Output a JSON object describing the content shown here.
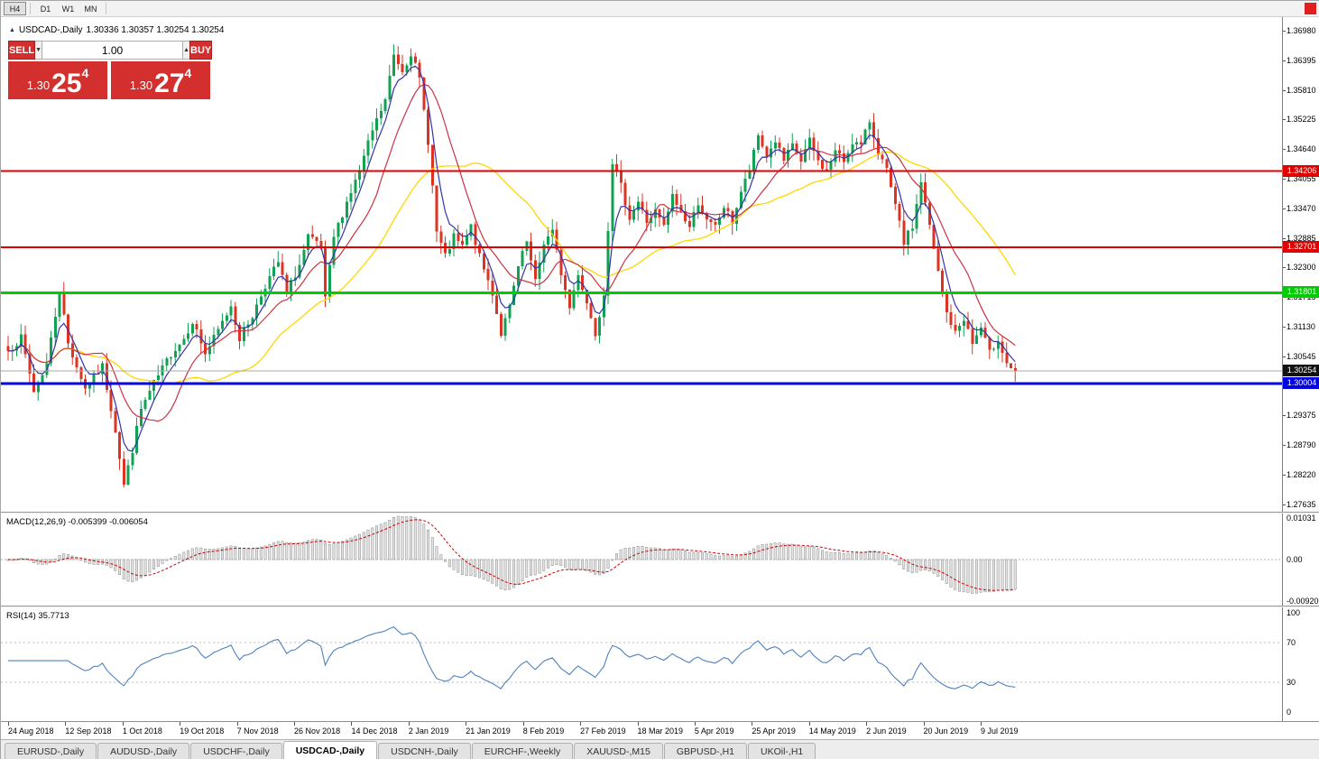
{
  "topbar": {
    "timeframes": [
      "H4",
      "D1",
      "W1",
      "MN"
    ],
    "active_timeframe": "H4"
  },
  "status_indicator_color": "#e02020",
  "chart": {
    "title_symbol": "USDCAD-,Daily",
    "title_ohlc": "1.30336 1.30357 1.30254 1.30254",
    "price_axis": [
      "1.36980",
      "1.36395",
      "1.35810",
      "1.35225",
      "1.34640",
      "1.34055",
      "1.33470",
      "1.32885",
      "1.32300",
      "1.31715",
      "1.31130",
      "1.30545",
      "1.29960",
      "1.29375",
      "1.28790",
      "1.28220",
      "1.27635"
    ],
    "hlines": [
      {
        "price": 1.34206,
        "label": "1.34206",
        "color": "#e00000",
        "width": 2
      },
      {
        "price": 1.32701,
        "label": "1.32701",
        "color": "#e00000",
        "width": 2
      },
      {
        "price": 1.31801,
        "label": "1.31801",
        "color": "#00cc00",
        "width": 3
      },
      {
        "price": 1.30004,
        "label": "1.30004",
        "color": "#0000e0",
        "width": 3
      }
    ],
    "bid_line": {
      "price": 1.30254,
      "label": "1.30254",
      "line_color": "#aaaaaa",
      "tag_color": "#111111"
    },
    "colors": {
      "bull": "#11a152",
      "bear": "#dd3322",
      "ma_fast": "#3333aa",
      "ma_mid": "#cc3344",
      "ma_slow": "#ffd700"
    }
  },
  "trade_panel": {
    "sell_label": "SELL",
    "buy_label": "BUY",
    "volume": "1.00",
    "sell_price": {
      "prefix": "1.30",
      "big": "25",
      "sup": "4"
    },
    "buy_price": {
      "prefix": "1.30",
      "big": "27",
      "sup": "4"
    },
    "panel_color": "#d42f2f"
  },
  "icons": {
    "collapse": "▲",
    "spin_up": "▲",
    "spin_down": "▼"
  },
  "macd": {
    "label": "MACD(12,26,9)",
    "values": "-0.005399 -0.006054",
    "axis": [
      "0.01031",
      "0.00",
      "-0.00920"
    ],
    "hist_fill": "#e4e4e4",
    "hist_stroke": "#999999",
    "signal_color": "#cc0000"
  },
  "rsi": {
    "label": "RSI(14)",
    "value": "35.7713",
    "axis": [
      "100",
      "70",
      "30",
      "0"
    ],
    "levels": [
      70,
      30
    ],
    "line_color": "#4f81bd"
  },
  "tabs": {
    "items": [
      "EURUSD-,Daily",
      "AUDUSD-,Daily",
      "USDCHF-,Daily",
      "USDCAD-,Daily",
      "USDCNH-,Daily",
      "EURCHF-,Weekly",
      "XAUUSD-,M15",
      "GBPUSD-,H1",
      "UKOil-,H1"
    ],
    "active_index": 3
  },
  "chart_data": {
    "type": "candlestick",
    "symbol": "USDCAD",
    "period": "Daily",
    "candle_count": 236,
    "last_close": 1.30254,
    "visible_price_range": [
      1.27635,
      1.3698
    ],
    "date_labels": [
      "24 Aug 2018",
      "12 Sep 2018",
      "1 Oct 2018",
      "19 Oct 2018",
      "7 Nov 2018",
      "26 Nov 2018",
      "14 Dec 2018",
      "2 Jan 2019",
      "21 Jan 2019",
      "8 Feb 2019",
      "27 Feb 2019",
      "18 Mar 2019",
      "5 Apr 2019",
      "25 Apr 2019",
      "14 May 2019",
      "2 Jun 2019",
      "20 Jun 2019",
      "9 Jul 2019"
    ],
    "anchors": [
      [
        0,
        1.3065
      ],
      [
        3,
        1.309
      ],
      [
        6,
        1.2985
      ],
      [
        9,
        1.304
      ],
      [
        12,
        1.3185
      ],
      [
        14,
        1.308
      ],
      [
        18,
        1.299
      ],
      [
        22,
        1.3035
      ],
      [
        25,
        1.291
      ],
      [
        27,
        1.28
      ],
      [
        29,
        1.287
      ],
      [
        31,
        1.295
      ],
      [
        34,
        1.3
      ],
      [
        38,
        1.306
      ],
      [
        41,
        1.309
      ],
      [
        43,
        1.3125
      ],
      [
        46,
        1.306
      ],
      [
        49,
        1.3105
      ],
      [
        52,
        1.3155
      ],
      [
        54,
        1.309
      ],
      [
        57,
        1.3135
      ],
      [
        60,
        1.3195
      ],
      [
        63,
        1.324
      ],
      [
        65,
        1.318
      ],
      [
        68,
        1.3235
      ],
      [
        70,
        1.329
      ],
      [
        73,
        1.327
      ],
      [
        74,
        1.3165
      ],
      [
        76,
        1.329
      ],
      [
        79,
        1.336
      ],
      [
        82,
        1.342
      ],
      [
        85,
        1.35
      ],
      [
        88,
        1.356
      ],
      [
        90,
        1.365
      ],
      [
        92,
        1.362
      ],
      [
        94,
        1.3655
      ],
      [
        96,
        1.36
      ],
      [
        98,
        1.348
      ],
      [
        100,
        1.33
      ],
      [
        102,
        1.325
      ],
      [
        104,
        1.329
      ],
      [
        106,
        1.327
      ],
      [
        108,
        1.331
      ],
      [
        110,
        1.325
      ],
      [
        113,
        1.318
      ],
      [
        115,
        1.31
      ],
      [
        117,
        1.315
      ],
      [
        119,
        1.323
      ],
      [
        121,
        1.328
      ],
      [
        123,
        1.32
      ],
      [
        125,
        1.328
      ],
      [
        127,
        1.33
      ],
      [
        129,
        1.322
      ],
      [
        131,
        1.315
      ],
      [
        133,
        1.322
      ],
      [
        135,
        1.316
      ],
      [
        137,
        1.31
      ],
      [
        139,
        1.318
      ],
      [
        141,
        1.344
      ],
      [
        143,
        1.339
      ],
      [
        145,
        1.333
      ],
      [
        147,
        1.336
      ],
      [
        149,
        1.332
      ],
      [
        151,
        1.334
      ],
      [
        153,
        1.331
      ],
      [
        155,
        1.337
      ],
      [
        157,
        1.334
      ],
      [
        159,
        1.331
      ],
      [
        161,
        1.336
      ],
      [
        163,
        1.332
      ],
      [
        165,
        1.331
      ],
      [
        167,
        1.335
      ],
      [
        169,
        1.332
      ],
      [
        171,
        1.338
      ],
      [
        173,
        1.342
      ],
      [
        175,
        1.349
      ],
      [
        177,
        1.345
      ],
      [
        179,
        1.348
      ],
      [
        181,
        1.344
      ],
      [
        183,
        1.347
      ],
      [
        185,
        1.344
      ],
      [
        187,
        1.348
      ],
      [
        189,
        1.344
      ],
      [
        191,
        1.342
      ],
      [
        193,
        1.346
      ],
      [
        195,
        1.344
      ],
      [
        197,
        1.348
      ],
      [
        199,
        1.347
      ],
      [
        201,
        1.352
      ],
      [
        203,
        1.346
      ],
      [
        205,
        1.342
      ],
      [
        207,
        1.335
      ],
      [
        209,
        1.328
      ],
      [
        211,
        1.331
      ],
      [
        213,
        1.34
      ],
      [
        215,
        1.331
      ],
      [
        217,
        1.322
      ],
      [
        219,
        1.314
      ],
      [
        221,
        1.31
      ],
      [
        223,
        1.313
      ],
      [
        225,
        1.308
      ],
      [
        227,
        1.311
      ],
      [
        229,
        1.306
      ],
      [
        231,
        1.309
      ],
      [
        233,
        1.304
      ],
      [
        235,
        1.30254
      ]
    ]
  }
}
